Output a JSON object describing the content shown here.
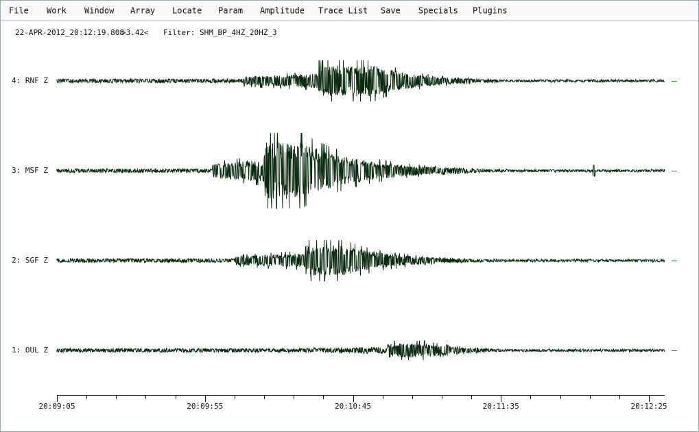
{
  "menu": [
    "File",
    "Work",
    "Window",
    "Array",
    "Locate",
    "Param",
    "Amplitude",
    "Trace List",
    "Save",
    "Specials",
    "Plugins"
  ],
  "info": {
    "datetime": "22-APR-2012_20:12:19.808",
    "magnitude": ">3.42<",
    "filter": "Filter: SHM_BP_4HZ_20HZ_3"
  },
  "traces": [
    "4: RNF Z",
    "3: MSF Z",
    "2: SGF Z",
    "1: OUL Z"
  ],
  "time_axis": [
    "20:09:05",
    "20:09:55",
    "20:10:45",
    "20:11:35",
    "20:12:25"
  ]
}
